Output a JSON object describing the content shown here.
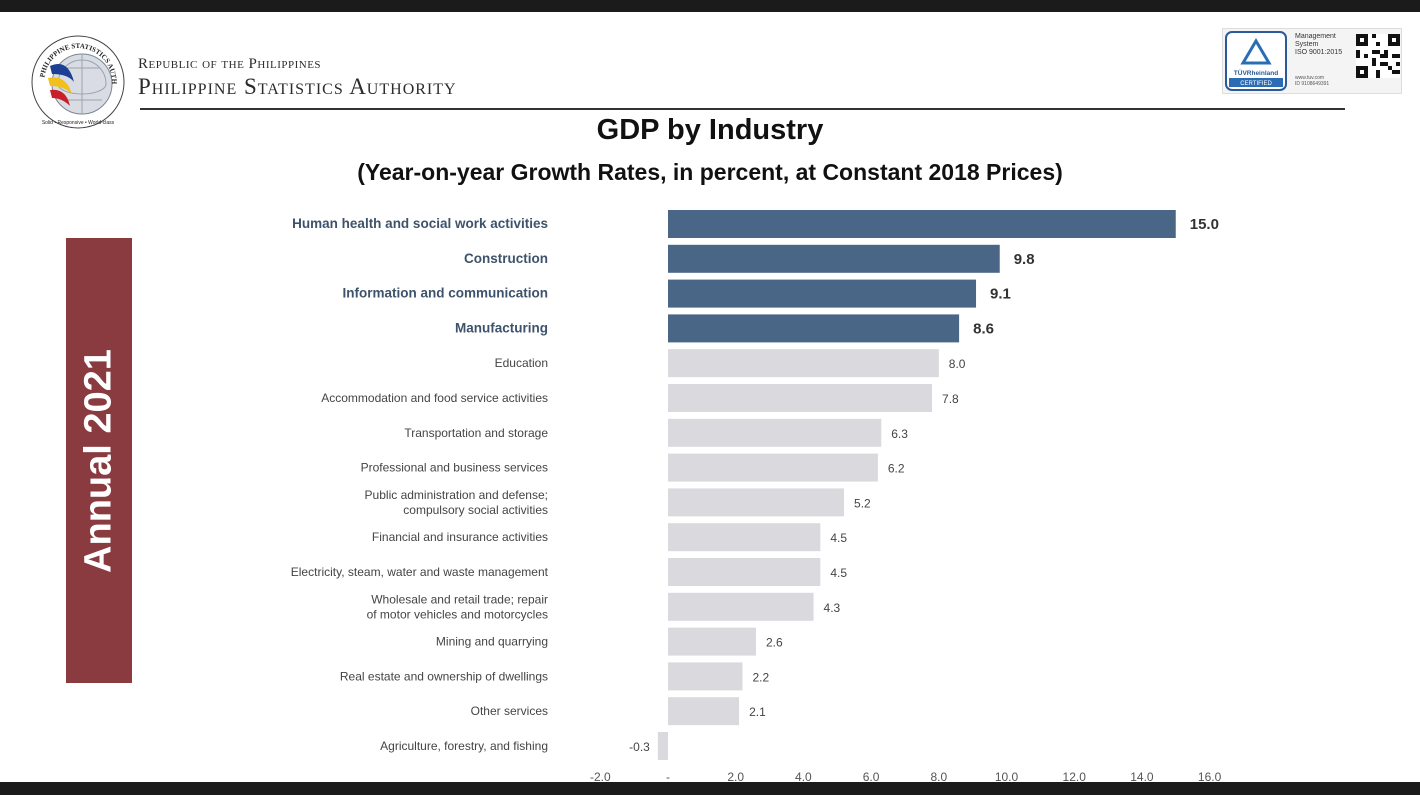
{
  "header": {
    "republic": "Republic of the Philippines",
    "agency": "Philippine Statistics Authority",
    "logo_ring_text": "PHILIPPINE STATISTICS AUTHORITY",
    "logo_motto": "Solid • Responsive • World-class"
  },
  "certification": {
    "management": "Management",
    "system": "System",
    "iso": "ISO 9001:2015",
    "web": "www.tuv.com",
    "id": "ID 9108649391",
    "brand": "TÜVRheinland",
    "certified": "CERTIFIED"
  },
  "side_label": "Annual 2021",
  "colors": {
    "highlight": "#4a6687",
    "normal": "#dad9dd",
    "band": "#8a3b40"
  },
  "chart_data": {
    "type": "bar",
    "orientation": "horizontal",
    "title": "GDP by Industry",
    "subtitle": "(Year-on-year Growth Rates, in percent, at Constant 2018 Prices)",
    "xlim": [
      -2,
      16
    ],
    "ticks": [
      "-2.0",
      "-",
      "2.0",
      "4.0",
      "6.0",
      "8.0",
      "10.0",
      "12.0",
      "14.0",
      "16.0"
    ],
    "categories": [
      [
        "Human health and social work activities"
      ],
      [
        "Construction"
      ],
      [
        "Information and communication"
      ],
      [
        "Manufacturing"
      ],
      [
        "Education"
      ],
      [
        "Accommodation and food service activities"
      ],
      [
        "Transportation and storage"
      ],
      [
        "Professional and business services"
      ],
      [
        "Public administration and defense;",
        "compulsory social activities"
      ],
      [
        "Financial and insurance activities"
      ],
      [
        "Electricity, steam, water and waste management"
      ],
      [
        "Wholesale and retail trade; repair",
        "of motor vehicles and motorcycles"
      ],
      [
        "Mining and quarrying"
      ],
      [
        "Real estate and ownership of dwellings"
      ],
      [
        "Other services"
      ],
      [
        "Agriculture, forestry, and fishing"
      ]
    ],
    "values": [
      15.0,
      9.8,
      9.1,
      8.6,
      8.0,
      7.8,
      6.3,
      6.2,
      5.2,
      4.5,
      4.5,
      4.3,
      2.6,
      2.2,
      2.1,
      -0.3
    ],
    "value_labels": [
      "15.0",
      "9.8",
      "9.1",
      "8.6",
      "8.0",
      "7.8",
      "6.3",
      "6.2",
      "5.2",
      "4.5",
      "4.5",
      "4.3",
      "2.6",
      "2.2",
      "2.1",
      "-0.3"
    ],
    "highlighted": [
      true,
      true,
      true,
      true,
      false,
      false,
      false,
      false,
      false,
      false,
      false,
      false,
      false,
      false,
      false,
      false
    ]
  }
}
